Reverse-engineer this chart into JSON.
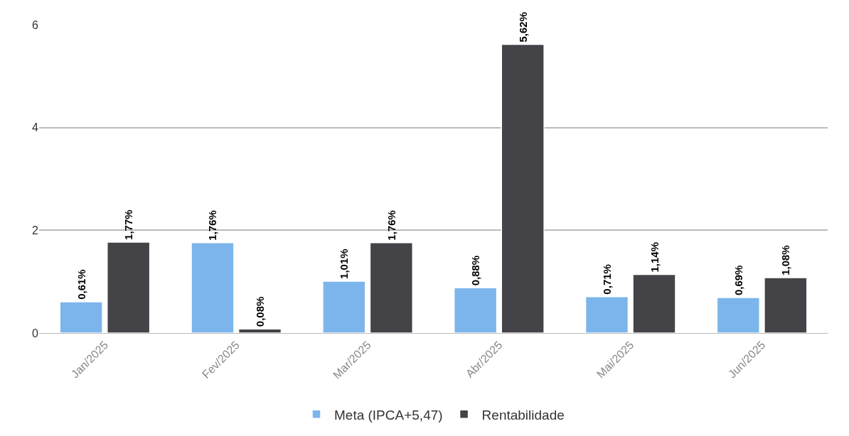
{
  "chart_data": {
    "type": "bar",
    "categories": [
      "Jan/2025",
      "Fev/2025",
      "Mar/2025",
      "Abr/2025",
      "Mai/2025",
      "Jun/2025"
    ],
    "series": [
      {
        "name": "Meta (IPCA+5,47)",
        "color": "#7cb5ec",
        "values": [
          0.61,
          1.76,
          1.01,
          0.88,
          0.71,
          0.69
        ],
        "value_labels": [
          "0,61%",
          "1,76%",
          "1,01%",
          "0,88%",
          "0,71%",
          "0,69%"
        ]
      },
      {
        "name": "Rentabilidade",
        "color": "#434348",
        "values": [
          1.77,
          0.08,
          1.76,
          5.62,
          1.14,
          1.08
        ],
        "value_labels": [
          "1,77%",
          "0,08%",
          "1,76%",
          "5,62%",
          "1,14%",
          "1,08%"
        ]
      }
    ],
    "ylim": [
      0,
      6
    ],
    "yticks": [
      0,
      2,
      4,
      6
    ],
    "grid": "y",
    "legend": "bottom"
  }
}
